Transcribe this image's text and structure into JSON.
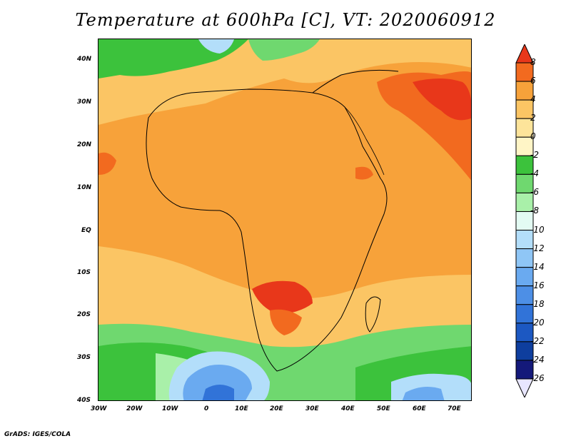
{
  "title": "Temperature at 600hPa [C], VT: 2020060912",
  "credit": "GrADS: IGES/COLA",
  "lat_ticks": [
    "40N",
    "30N",
    "20N",
    "10N",
    "EQ",
    "10S",
    "20S",
    "30S",
    "40S"
  ],
  "lon_ticks": [
    "30W",
    "20W",
    "10W",
    "0",
    "10E",
    "20E",
    "30E",
    "40E",
    "50E",
    "60E",
    "70E"
  ],
  "colorbar": {
    "labels": [
      "8",
      "6",
      "4",
      "2",
      "0",
      "-2",
      "-4",
      "-6",
      "-8",
      "-10",
      "-12",
      "-14",
      "-16",
      "-18",
      "-20",
      "-22",
      "-24",
      "-26"
    ],
    "colors": [
      "#e8371a",
      "#f26a1f",
      "#f7a23a",
      "#fbc564",
      "#fde49a",
      "#fff5c6",
      "#3cc23c",
      "#6fd86f",
      "#a9f0a9",
      "#e3fbf3",
      "#b3defa",
      "#8fc6f6",
      "#6aaaf0",
      "#4d8fe6",
      "#3173d8",
      "#1c58c2",
      "#0e3e9e",
      "#14197a",
      "#e8e6ff"
    ]
  },
  "colors": {
    "hot": "#e8371a",
    "warm": "#f26a1f",
    "base": "#f7a23a",
    "light": "#fbc564",
    "pale": "#fde49a",
    "cream": "#fff5c6",
    "green": "#3cc23c",
    "lightgreen": "#6fd86f",
    "palegreen": "#a9f0a9",
    "mint": "#e3fbf3",
    "lightblue": "#b3defa",
    "blue": "#6aaaf0",
    "deepblue": "#3173d8",
    "border": "#000000"
  }
}
